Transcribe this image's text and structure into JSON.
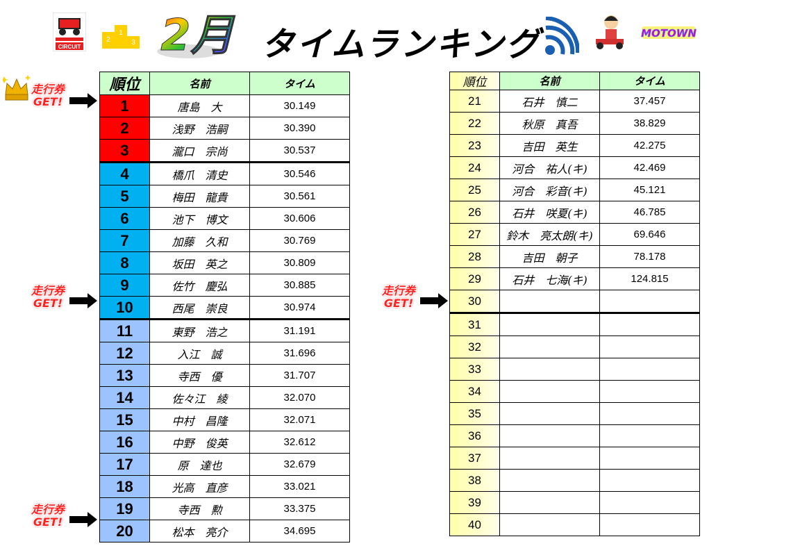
{
  "header": {
    "month": "2月",
    "title": "タイムランキング",
    "circuit_logo_text": "CIRCUIT",
    "motown_logo_text": "MOTOWN"
  },
  "columns": {
    "rank": "順位",
    "name": "名前",
    "time": "タイム"
  },
  "ticket": {
    "line1": "走行券",
    "line2": "GET!"
  },
  "colors": {
    "top3": "#ff0000",
    "mid": "#00b0f0",
    "low": "#9dc3ff",
    "header": "#ccffcc",
    "right_rank": "#ffffaa"
  },
  "left_rows": [
    {
      "rank": "1",
      "name": "唐島　大",
      "time": "30.149"
    },
    {
      "rank": "2",
      "name": "浅野　浩嗣",
      "time": "30.390"
    },
    {
      "rank": "3",
      "name": "瀧口　宗尚",
      "time": "30.537"
    },
    {
      "rank": "4",
      "name": "橋爪　清史",
      "time": "30.546"
    },
    {
      "rank": "5",
      "name": "梅田　龍貴",
      "time": "30.561"
    },
    {
      "rank": "6",
      "name": "池下　博文",
      "time": "30.606"
    },
    {
      "rank": "7",
      "name": "加藤　久和",
      "time": "30.769"
    },
    {
      "rank": "8",
      "name": "坂田　英之",
      "time": "30.809"
    },
    {
      "rank": "9",
      "name": "佐竹　慶弘",
      "time": "30.885"
    },
    {
      "rank": "10",
      "name": "西尾　崇良",
      "time": "30.974"
    },
    {
      "rank": "11",
      "name": "東野　浩之",
      "time": "31.191"
    },
    {
      "rank": "12",
      "name": "入江　誠",
      "time": "31.696"
    },
    {
      "rank": "13",
      "name": "寺西　優",
      "time": "31.707"
    },
    {
      "rank": "14",
      "name": "佐々江　綾",
      "time": "32.070"
    },
    {
      "rank": "15",
      "name": "中村　昌隆",
      "time": "32.071"
    },
    {
      "rank": "16",
      "name": "中野　俊英",
      "time": "32.612"
    },
    {
      "rank": "17",
      "name": "原　達也",
      "time": "32.679"
    },
    {
      "rank": "18",
      "name": "光高　直彦",
      "time": "33.021"
    },
    {
      "rank": "19",
      "name": "寺西　勲",
      "time": "33.375"
    },
    {
      "rank": "20",
      "name": "松本　亮介",
      "time": "34.695"
    }
  ],
  "right_rows": [
    {
      "rank": "21",
      "name": "石井　慎二",
      "time": "37.457"
    },
    {
      "rank": "22",
      "name": "秋原　真吾",
      "time": "38.829"
    },
    {
      "rank": "23",
      "name": "吉田　英生",
      "time": "42.275"
    },
    {
      "rank": "24",
      "name": "河合　祐人(キ)",
      "time": "42.469"
    },
    {
      "rank": "25",
      "name": "河合　彩音(キ)",
      "time": "45.121"
    },
    {
      "rank": "26",
      "name": "石井　咲夏(キ)",
      "time": "46.785"
    },
    {
      "rank": "27",
      "name": "鈴木　亮太朗(キ)",
      "time": "69.646"
    },
    {
      "rank": "28",
      "name": "吉田　朝子",
      "time": "78.178"
    },
    {
      "rank": "29",
      "name": "石井　七海(キ)",
      "time": "124.815"
    },
    {
      "rank": "30",
      "name": "",
      "time": ""
    },
    {
      "rank": "31",
      "name": "",
      "time": ""
    },
    {
      "rank": "32",
      "name": "",
      "time": ""
    },
    {
      "rank": "33",
      "name": "",
      "time": ""
    },
    {
      "rank": "34",
      "name": "",
      "time": ""
    },
    {
      "rank": "35",
      "name": "",
      "time": ""
    },
    {
      "rank": "36",
      "name": "",
      "time": ""
    },
    {
      "rank": "37",
      "name": "",
      "time": ""
    },
    {
      "rank": "38",
      "name": "",
      "time": ""
    },
    {
      "rank": "39",
      "name": "",
      "time": ""
    },
    {
      "rank": "40",
      "name": "",
      "time": ""
    }
  ]
}
